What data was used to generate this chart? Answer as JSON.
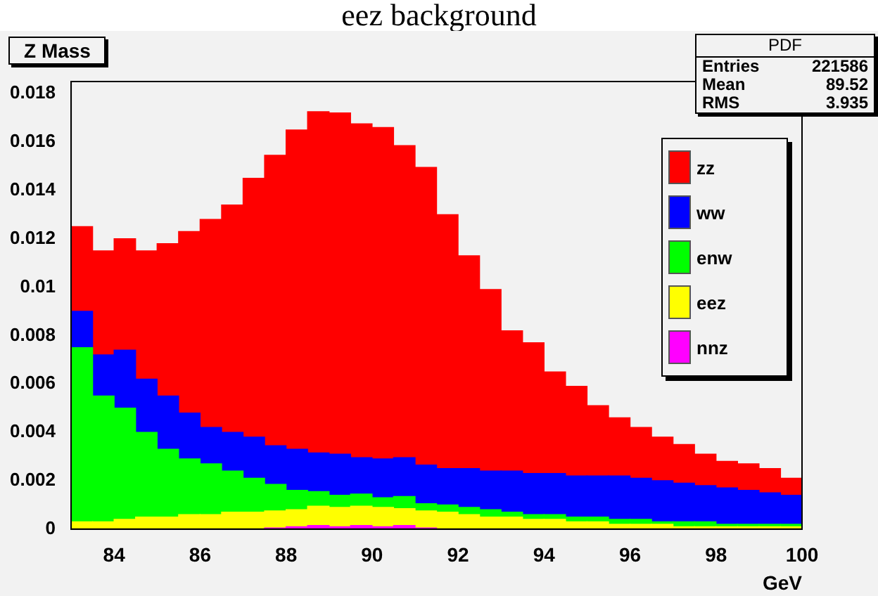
{
  "chart_data": {
    "type": "bar",
    "title": "eez background",
    "subtitle": "Z Mass",
    "xlabel": "GeV",
    "stacked": true,
    "legend": "right",
    "grid": false,
    "x": [
      83.25,
      83.75,
      84.25,
      84.75,
      85.25,
      85.75,
      86.25,
      86.75,
      87.25,
      87.75,
      88.25,
      88.75,
      89.25,
      89.75,
      90.25,
      90.75,
      91.25,
      91.75,
      92.25,
      92.75,
      93.25,
      93.75,
      94.25,
      94.75,
      95.25,
      95.75,
      96.25,
      96.75,
      97.25,
      97.75,
      98.25,
      98.75,
      99.25,
      99.75
    ],
    "xlim": [
      83,
      100
    ],
    "xticks": [
      84,
      86,
      88,
      90,
      92,
      94,
      96,
      98,
      100
    ],
    "ylim": [
      0,
      0.0185
    ],
    "yticks": [
      0,
      0.002,
      0.004,
      0.006,
      0.008,
      0.01,
      0.012,
      0.014,
      0.016,
      0.018
    ],
    "series": [
      {
        "name": "nnz",
        "color": "#ff00ff",
        "values": [
          0,
          0,
          0,
          0,
          0,
          0,
          0,
          0,
          0,
          5e-05,
          0.0001,
          0.00015,
          0.0001,
          0.00015,
          0.0001,
          0.00015,
          5e-05,
          0,
          0,
          0,
          0,
          0,
          0,
          0,
          0,
          0,
          0,
          0,
          0,
          0,
          0,
          0,
          0,
          0
        ]
      },
      {
        "name": "eez",
        "color": "#ffff00",
        "values": [
          0.0003,
          0.0003,
          0.0004,
          0.0005,
          0.0005,
          0.0006,
          0.0006,
          0.0007,
          0.0007,
          0.0007,
          0.0007,
          0.0008,
          0.0008,
          0.0008,
          0.0008,
          0.0007,
          0.0007,
          0.0007,
          0.0006,
          0.0005,
          0.0005,
          0.0004,
          0.0004,
          0.0003,
          0.0003,
          0.0002,
          0.0002,
          0.0002,
          0.0001,
          0.0001,
          0.0001,
          0.0001,
          0.0001,
          0.0001
        ]
      },
      {
        "name": "enw",
        "color": "#00ff00",
        "values": [
          0.0072,
          0.0052,
          0.0046,
          0.0035,
          0.0028,
          0.0023,
          0.0021,
          0.0017,
          0.0014,
          0.0011,
          0.0008,
          0.0006,
          0.0005,
          0.0005,
          0.0004,
          0.0005,
          0.0003,
          0.0003,
          0.0003,
          0.0003,
          0.0002,
          0.0002,
          0.0002,
          0.0002,
          0.0002,
          0.0002,
          0.0002,
          0.0001,
          0.0002,
          0.0002,
          0.0001,
          0.0001,
          0.0001,
          0.0001
        ]
      },
      {
        "name": "ww",
        "color": "#0000ff",
        "values": [
          0.0015,
          0.0017,
          0.0024,
          0.0022,
          0.0022,
          0.0019,
          0.0015,
          0.0016,
          0.0017,
          0.0016,
          0.0017,
          0.0016,
          0.0017,
          0.0015,
          0.0016,
          0.0016,
          0.0016,
          0.0015,
          0.0016,
          0.0016,
          0.0017,
          0.0017,
          0.0017,
          0.0017,
          0.0017,
          0.0018,
          0.0017,
          0.0017,
          0.0016,
          0.0015,
          0.0015,
          0.0014,
          0.0013,
          0.0012
        ]
      },
      {
        "name": "zz",
        "color": "#ff0000",
        "values": [
          0.0035,
          0.0043,
          0.0046,
          0.0053,
          0.0063,
          0.0075,
          0.0086,
          0.0094,
          0.0107,
          0.012,
          0.0132,
          0.0141,
          0.0141,
          0.0138,
          0.0137,
          0.0129,
          0.0123,
          0.0105,
          0.0088,
          0.0075,
          0.0058,
          0.0054,
          0.0042,
          0.0037,
          0.0029,
          0.0024,
          0.0021,
          0.0018,
          0.0016,
          0.0013,
          0.0011,
          0.0011,
          0.001,
          0.0007
        ]
      }
    ],
    "annotations": [
      "PDF",
      "Entries 221586",
      "Mean 89.52",
      "RMS 3.935"
    ]
  }
}
